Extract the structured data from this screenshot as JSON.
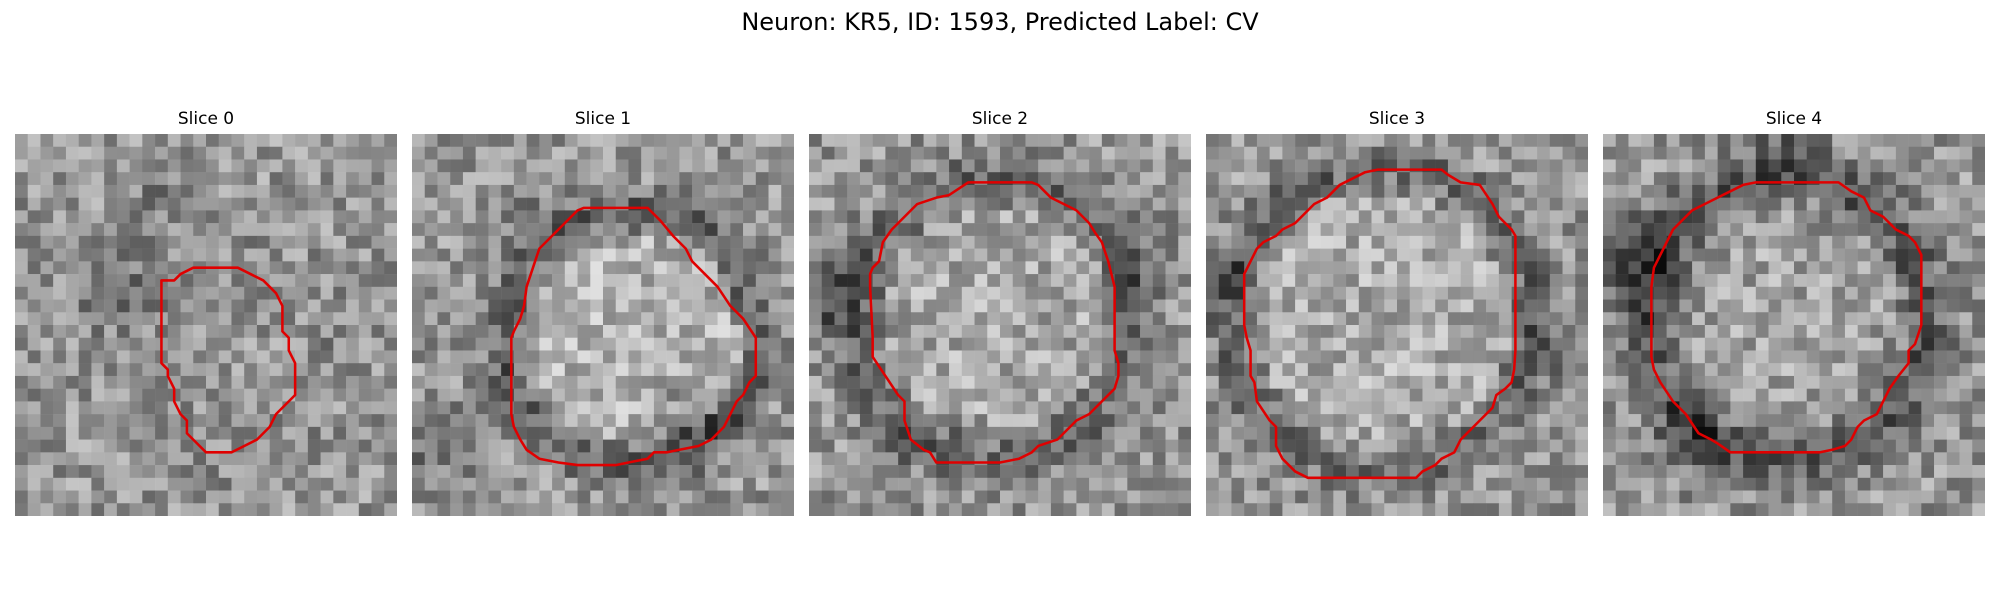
{
  "figure": {
    "title": "Neuron: KR5, ID: 1593, Predicted Label: CV"
  },
  "outline_color": "#e00000",
  "panels": [
    {
      "title": "Slice 0"
    },
    {
      "title": "Slice 1"
    },
    {
      "title": "Slice 2"
    },
    {
      "title": "Slice 3"
    },
    {
      "title": "Slice 4"
    }
  ]
}
